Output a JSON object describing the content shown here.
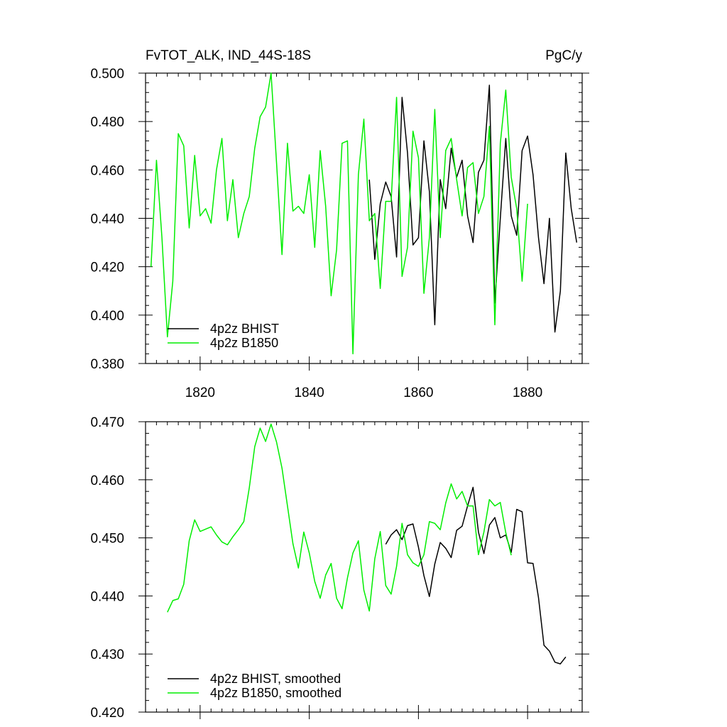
{
  "title_left": "FvTOT_ALK, IND_44S-18S",
  "title_right": "PgC/y",
  "colors": {
    "bhist": "#000000",
    "b1850": "#00ee00",
    "axis": "#000000"
  },
  "chart_data": [
    {
      "type": "line",
      "panel": "top",
      "xlim": [
        1810,
        1890
      ],
      "ylim": [
        0.38,
        0.5
      ],
      "x_ticks": [
        1820,
        1840,
        1860,
        1880
      ],
      "x_tick_labels": [
        "1820",
        "1840",
        "1860",
        "1880"
      ],
      "y_ticks": [
        0.38,
        0.4,
        0.42,
        0.44,
        0.46,
        0.48,
        0.5
      ],
      "y_tick_labels": [
        "0.380",
        "0.400",
        "0.420",
        "0.440",
        "0.460",
        "0.480",
        "0.500"
      ],
      "legend_position": "bottom-left",
      "series": [
        {
          "name": "4p2z BHIST",
          "color": "#000000",
          "x": [
            1851,
            1852,
            1853,
            1854,
            1855,
            1856,
            1857,
            1858,
            1859,
            1860,
            1861,
            1862,
            1863,
            1864,
            1865,
            1866,
            1867,
            1868,
            1869,
            1870,
            1871,
            1872,
            1873,
            1874,
            1875,
            1876,
            1877,
            1878,
            1879,
            1880,
            1881,
            1882,
            1883,
            1884,
            1885,
            1886,
            1887,
            1888,
            1889
          ],
          "y": [
            0.456,
            0.423,
            0.446,
            0.455,
            0.449,
            0.424,
            0.49,
            0.467,
            0.429,
            0.432,
            0.472,
            0.451,
            0.396,
            0.456,
            0.444,
            0.469,
            0.457,
            0.464,
            0.441,
            0.43,
            0.459,
            0.464,
            0.495,
            0.405,
            0.44,
            0.473,
            0.441,
            0.433,
            0.468,
            0.474,
            0.458,
            0.432,
            0.413,
            0.44,
            0.393,
            0.41,
            0.467,
            0.444,
            0.43
          ]
        },
        {
          "name": "4p2z B1850",
          "color": "#00ee00",
          "x": [
            1811,
            1812,
            1813,
            1814,
            1815,
            1816,
            1817,
            1818,
            1819,
            1820,
            1821,
            1822,
            1823,
            1824,
            1825,
            1826,
            1827,
            1828,
            1829,
            1830,
            1831,
            1832,
            1833,
            1834,
            1835,
            1836,
            1837,
            1838,
            1839,
            1840,
            1841,
            1842,
            1843,
            1844,
            1845,
            1846,
            1847,
            1848,
            1849,
            1850,
            1851,
            1852,
            1853,
            1854,
            1855,
            1856,
            1857,
            1858,
            1859,
            1860,
            1861,
            1862,
            1863,
            1864,
            1865,
            1866,
            1867,
            1868,
            1869,
            1870,
            1871,
            1872,
            1873,
            1874,
            1875,
            1876,
            1877,
            1878,
            1879,
            1880
          ],
          "y": [
            0.42,
            0.464,
            0.432,
            0.391,
            0.414,
            0.475,
            0.47,
            0.436,
            0.466,
            0.441,
            0.444,
            0.438,
            0.46,
            0.473,
            0.439,
            0.456,
            0.432,
            0.442,
            0.449,
            0.469,
            0.482,
            0.486,
            0.5,
            0.463,
            0.425,
            0.471,
            0.443,
            0.445,
            0.442,
            0.458,
            0.428,
            0.468,
            0.445,
            0.408,
            0.427,
            0.471,
            0.472,
            0.384,
            0.458,
            0.481,
            0.439,
            0.442,
            0.411,
            0.447,
            0.447,
            0.49,
            0.416,
            0.428,
            0.476,
            0.465,
            0.409,
            0.432,
            0.485,
            0.432,
            0.468,
            0.473,
            0.456,
            0.441,
            0.461,
            0.463,
            0.442,
            0.449,
            0.478,
            0.396,
            0.471,
            0.493,
            0.457,
            0.444,
            0.414,
            0.446
          ]
        }
      ]
    },
    {
      "type": "line",
      "panel": "bottom",
      "xlim": [
        1810,
        1890
      ],
      "ylim": [
        0.42,
        0.47
      ],
      "x_ticks": [
        1820,
        1840,
        1860,
        1880
      ],
      "y_ticks": [
        0.42,
        0.43,
        0.44,
        0.45,
        0.46,
        0.47
      ],
      "y_tick_labels": [
        "0.420",
        "0.430",
        "0.440",
        "0.450",
        "0.460",
        "0.470"
      ],
      "legend_position": "bottom-left",
      "series": [
        {
          "name": "4p2z BHIST, smoothed",
          "color": "#000000",
          "x": [
            1854,
            1855,
            1856,
            1857,
            1858,
            1859,
            1860,
            1861,
            1862,
            1863,
            1864,
            1865,
            1866,
            1867,
            1868,
            1869,
            1870,
            1871,
            1872,
            1873,
            1874,
            1875,
            1876,
            1877,
            1878,
            1879,
            1880,
            1881,
            1882,
            1883,
            1884,
            1885,
            1886,
            1887
          ],
          "y": [
            0.4489,
            0.4505,
            0.4514,
            0.4497,
            0.4521,
            0.4524,
            0.4484,
            0.4435,
            0.4399,
            0.4455,
            0.4492,
            0.4482,
            0.4466,
            0.4513,
            0.452,
            0.4555,
            0.4587,
            0.451,
            0.4473,
            0.4522,
            0.4535,
            0.45,
            0.4505,
            0.4475,
            0.4549,
            0.4545,
            0.4457,
            0.4456,
            0.4397,
            0.4315,
            0.4305,
            0.4286,
            0.4283,
            0.4295
          ]
        },
        {
          "name": "4p2z B1850, smoothed",
          "color": "#00ee00",
          "x": [
            1814,
            1815,
            1816,
            1817,
            1818,
            1819,
            1820,
            1821,
            1822,
            1823,
            1824,
            1825,
            1826,
            1827,
            1828,
            1829,
            1830,
            1831,
            1832,
            1833,
            1834,
            1835,
            1836,
            1837,
            1838,
            1839,
            1840,
            1841,
            1842,
            1843,
            1844,
            1845,
            1846,
            1847,
            1848,
            1849,
            1850,
            1851,
            1852,
            1853,
            1854,
            1855,
            1856,
            1857,
            1858,
            1859,
            1860,
            1861,
            1862,
            1863,
            1864,
            1865,
            1866,
            1867,
            1868,
            1869,
            1870,
            1871,
            1872,
            1873,
            1874,
            1875,
            1876,
            1877
          ],
          "y": [
            0.4372,
            0.4392,
            0.4395,
            0.442,
            0.4495,
            0.4531,
            0.4511,
            0.4515,
            0.4519,
            0.4505,
            0.4493,
            0.4488,
            0.4502,
            0.4514,
            0.4528,
            0.4586,
            0.4657,
            0.4689,
            0.4666,
            0.4696,
            0.4665,
            0.462,
            0.4555,
            0.449,
            0.4448,
            0.451,
            0.4474,
            0.4425,
            0.4396,
            0.4436,
            0.4456,
            0.4396,
            0.4378,
            0.4431,
            0.4474,
            0.4495,
            0.441,
            0.4374,
            0.4464,
            0.4511,
            0.4418,
            0.4403,
            0.4451,
            0.4525,
            0.4471,
            0.4457,
            0.4451,
            0.4471,
            0.4528,
            0.4525,
            0.4514,
            0.456,
            0.4593,
            0.4567,
            0.458,
            0.4555,
            0.4555,
            0.4471,
            0.451,
            0.4566,
            0.4555,
            0.4561,
            0.4509,
            0.447
          ]
        }
      ]
    }
  ]
}
